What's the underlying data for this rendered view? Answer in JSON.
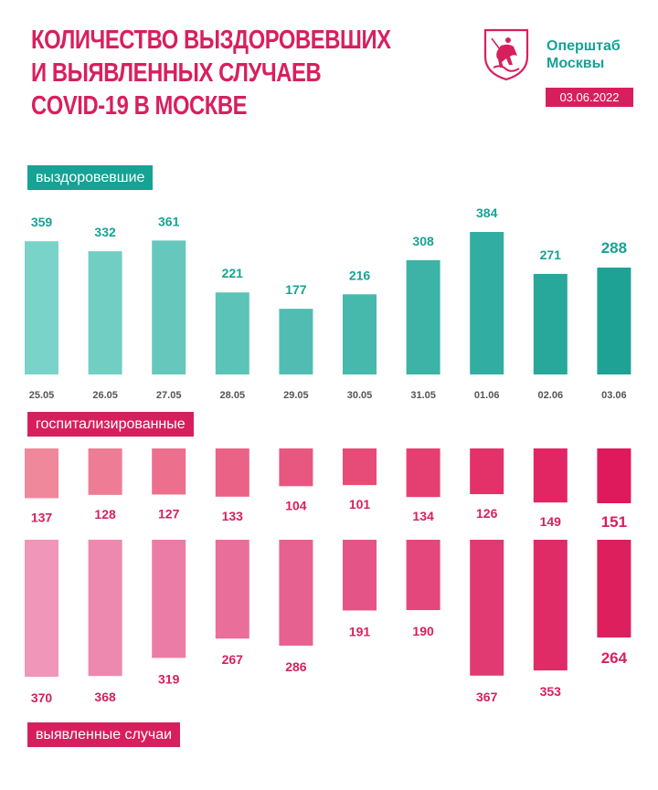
{
  "header": {
    "title_lines": [
      "КОЛИЧЕСТВО ВЫЗДОРОВЕВШИХ",
      "И ВЫЯВЛЕННЫХ СЛУЧАЕВ",
      "COVID-19 В МОСКВЕ"
    ],
    "org_line1": "Оперштаб",
    "org_line2": "Москвы",
    "date": "03.06.2022",
    "logo_icon": "moscow-coat-of-arms-icon"
  },
  "labels": {
    "recovered": "выздоровевшие",
    "hospitalized": "госпитализированные",
    "detected": "выявленные случаи"
  },
  "colors": {
    "brand_pink": "#d81f5e",
    "brand_teal": "#16a294",
    "teal_light": "#7ad3c9",
    "teal_dark": "#1ea295",
    "pink_light": "#f0889c",
    "pink_dark": "#df1a5c",
    "pink_soft_light": "#ef96b9",
    "pink_soft_dark": "#dd1f5d"
  },
  "chart_data": [
    {
      "type": "bar",
      "name": "выздоровевшие",
      "categories": [
        "25.05",
        "26.05",
        "27.05",
        "28.05",
        "29.05",
        "30.05",
        "31.05",
        "01.06",
        "02.06",
        "03.06"
      ],
      "values": [
        359,
        332,
        361,
        221,
        177,
        216,
        308,
        384,
        271,
        288
      ],
      "highlight_last": true
    },
    {
      "type": "bar",
      "name": "госпитализированные",
      "categories": [
        "25.05",
        "26.05",
        "27.05",
        "28.05",
        "29.05",
        "30.05",
        "31.05",
        "01.06",
        "02.06",
        "03.06"
      ],
      "values": [
        137,
        128,
        127,
        133,
        104,
        101,
        134,
        126,
        149,
        151
      ],
      "highlight_last": true
    },
    {
      "type": "bar",
      "name": "выявленные случаи",
      "categories": [
        "25.05",
        "26.05",
        "27.05",
        "28.05",
        "29.05",
        "30.05",
        "31.05",
        "01.06",
        "02.06",
        "03.06"
      ],
      "values": [
        370,
        368,
        319,
        267,
        286,
        191,
        190,
        367,
        353,
        264
      ],
      "highlight_last": true
    }
  ]
}
